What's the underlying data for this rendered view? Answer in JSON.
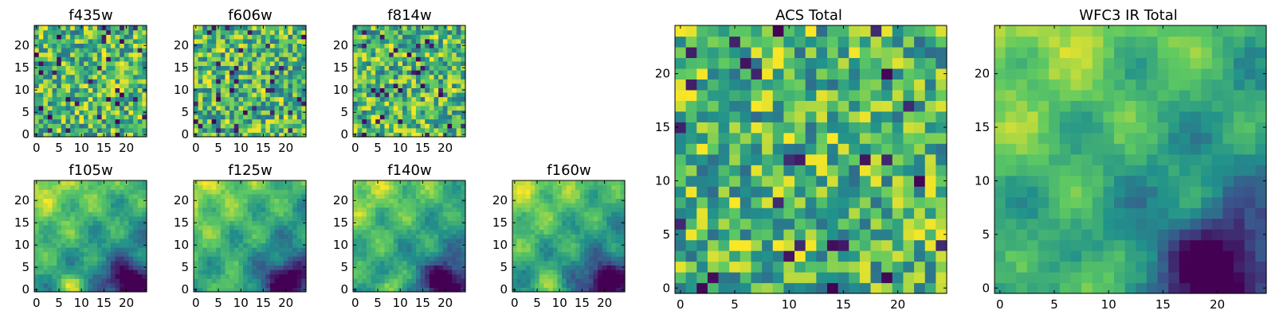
{
  "figure": {
    "colormap": "viridis",
    "colors": [
      "#440154",
      "#3b528b",
      "#21918c",
      "#5ec962",
      "#fde725"
    ]
  },
  "chart_data": [
    {
      "type": "heatmap",
      "title": "f435w",
      "grid": [
        25,
        25
      ],
      "x_ticks": [
        "0",
        "5",
        "10",
        "15",
        "20"
      ],
      "y_ticks": [
        "0",
        "5",
        "10",
        "15",
        "20"
      ],
      "xlim": [
        -0.5,
        24.5
      ],
      "ylim": [
        -0.5,
        24.5
      ],
      "pattern": "noise",
      "seed": 11
    },
    {
      "type": "heatmap",
      "title": "f606w",
      "grid": [
        25,
        25
      ],
      "x_ticks": [
        "0",
        "5",
        "10",
        "15",
        "20"
      ],
      "y_ticks": [
        "0",
        "5",
        "10",
        "15",
        "20"
      ],
      "xlim": [
        -0.5,
        24.5
      ],
      "ylim": [
        -0.5,
        24.5
      ],
      "pattern": "noise",
      "seed": 23
    },
    {
      "type": "heatmap",
      "title": "f814w",
      "grid": [
        25,
        25
      ],
      "x_ticks": [
        "0",
        "5",
        "10",
        "15",
        "20"
      ],
      "y_ticks": [
        "0",
        "5",
        "10",
        "15",
        "20"
      ],
      "xlim": [
        -0.5,
        24.5
      ],
      "ylim": [
        -0.5,
        24.5
      ],
      "pattern": "noise",
      "seed": 37
    },
    {
      "type": "heatmap",
      "title": "f105w",
      "grid": [
        25,
        25
      ],
      "x_ticks": [
        "0",
        "5",
        "10",
        "15",
        "20"
      ],
      "y_ticks": [
        "0",
        "5",
        "10",
        "15",
        "20"
      ],
      "xlim": [
        -0.5,
        24.5
      ],
      "ylim": [
        -0.5,
        24.5
      ],
      "pattern": "smooth",
      "seed": 41
    },
    {
      "type": "heatmap",
      "title": "f125w",
      "grid": [
        25,
        25
      ],
      "x_ticks": [
        "0",
        "5",
        "10",
        "15",
        "20"
      ],
      "y_ticks": [
        "0",
        "5",
        "10",
        "15",
        "20"
      ],
      "xlim": [
        -0.5,
        24.5
      ],
      "ylim": [
        -0.5,
        24.5
      ],
      "pattern": "smooth",
      "seed": 53
    },
    {
      "type": "heatmap",
      "title": "f140w",
      "grid": [
        25,
        25
      ],
      "x_ticks": [
        "0",
        "5",
        "10",
        "15",
        "20"
      ],
      "y_ticks": [
        "0",
        "5",
        "10",
        "15",
        "20"
      ],
      "xlim": [
        -0.5,
        24.5
      ],
      "ylim": [
        -0.5,
        24.5
      ],
      "pattern": "smooth",
      "seed": 67
    },
    {
      "type": "heatmap",
      "title": "f160w",
      "grid": [
        25,
        25
      ],
      "x_ticks": [
        "0",
        "5",
        "10",
        "15",
        "20"
      ],
      "y_ticks": [
        "0",
        "5",
        "10",
        "15",
        "20"
      ],
      "xlim": [
        -0.5,
        24.5
      ],
      "ylim": [
        -0.5,
        24.5
      ],
      "pattern": "smooth",
      "seed": 79
    },
    {
      "type": "heatmap",
      "title": "ACS Total",
      "grid": [
        25,
        25
      ],
      "x_ticks": [
        "0",
        "5",
        "10",
        "15",
        "20"
      ],
      "y_ticks": [
        "0",
        "5",
        "10",
        "15",
        "20"
      ],
      "xlim": [
        -0.5,
        24.5
      ],
      "ylim": [
        -0.5,
        24.5
      ],
      "pattern": "noise",
      "seed": 97
    },
    {
      "type": "heatmap",
      "title": "WFC3 IR Total",
      "grid": [
        25,
        25
      ],
      "x_ticks": [
        "0",
        "5",
        "10",
        "15",
        "20"
      ],
      "y_ticks": [
        "0",
        "5",
        "10",
        "15",
        "20"
      ],
      "xlim": [
        -0.5,
        24.5
      ],
      "ylim": [
        -0.5,
        24.5
      ],
      "pattern": "smooth",
      "seed": 101
    }
  ]
}
